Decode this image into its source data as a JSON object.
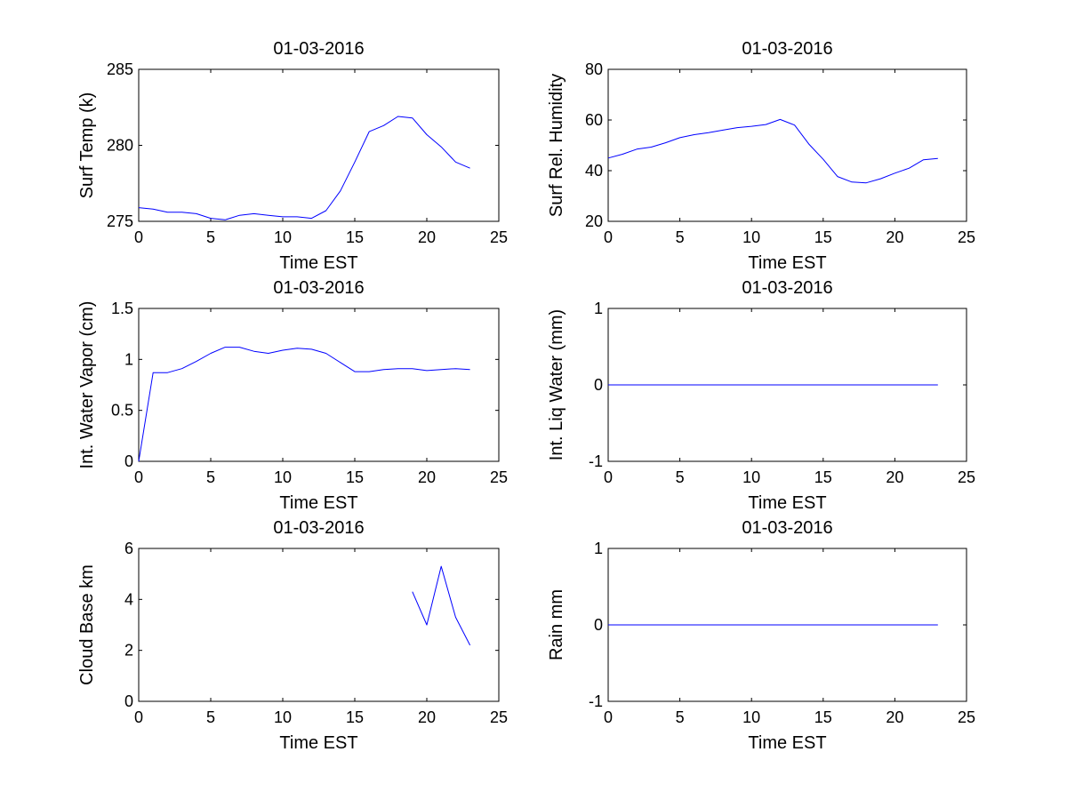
{
  "figure": {
    "background": "#ffffff",
    "axes_color": "#000000",
    "line_color": "#0000ff"
  },
  "chart_data": [
    {
      "type": "line",
      "title": "01-03-2016",
      "xlabel": "Time EST",
      "ylabel": "Surf Temp (k)",
      "xlim": [
        0,
        25
      ],
      "ylim": [
        275,
        285
      ],
      "xticks": [
        0,
        5,
        10,
        15,
        20,
        25
      ],
      "yticks": [
        275,
        280,
        285
      ],
      "grid": false,
      "series": [
        {
          "x": [
            0,
            1,
            2,
            3,
            4,
            5,
            6,
            7,
            8,
            9,
            10,
            11,
            12,
            13,
            14,
            15,
            16,
            17,
            18,
            19,
            20,
            21,
            22,
            23
          ],
          "y": [
            275.9,
            275.8,
            275.6,
            275.6,
            275.5,
            275.2,
            275.1,
            275.4,
            275.5,
            275.4,
            275.3,
            275.3,
            275.2,
            275.7,
            277.0,
            278.9,
            280.9,
            281.3,
            281.9,
            281.8,
            280.7,
            279.9,
            278.9,
            278.5
          ]
        }
      ]
    },
    {
      "type": "line",
      "title": "01-03-2016",
      "xlabel": "Time EST",
      "ylabel": "Surf Rel. Humidity",
      "xlim": [
        0,
        25
      ],
      "ylim": [
        20,
        80
      ],
      "xticks": [
        0,
        5,
        10,
        15,
        20,
        25
      ],
      "yticks": [
        20,
        40,
        60,
        80
      ],
      "grid": false,
      "series": [
        {
          "x": [
            0,
            1,
            2,
            3,
            4,
            5,
            6,
            7,
            8,
            9,
            10,
            11,
            12,
            13,
            14,
            15,
            16,
            17,
            18,
            19,
            20,
            21,
            22,
            23
          ],
          "y": [
            45.0,
            46.5,
            48.5,
            49.3,
            51.0,
            53.0,
            54.2,
            55.0,
            56.0,
            57.0,
            57.5,
            58.2,
            60.2,
            58.0,
            50.5,
            44.5,
            37.7,
            35.5,
            35.2,
            36.8,
            39.0,
            41.0,
            44.3,
            44.8
          ]
        }
      ]
    },
    {
      "type": "line",
      "title": "01-03-2016",
      "xlabel": "Time EST",
      "ylabel": "Int. Water Vapor (cm)",
      "xlim": [
        0,
        25
      ],
      "ylim": [
        0,
        1.5
      ],
      "xticks": [
        0,
        5,
        10,
        15,
        20,
        25
      ],
      "yticks": [
        0,
        0.5,
        1,
        1.5
      ],
      "grid": false,
      "series": [
        {
          "x": [
            0,
            1,
            2,
            3,
            4,
            5,
            6,
            7,
            8,
            9,
            10,
            11,
            12,
            13,
            14,
            15,
            16,
            17,
            18,
            19,
            20,
            21,
            22,
            23
          ],
          "y": [
            0.0,
            0.87,
            0.87,
            0.91,
            0.98,
            1.06,
            1.12,
            1.12,
            1.08,
            1.06,
            1.09,
            1.11,
            1.1,
            1.06,
            0.97,
            0.88,
            0.88,
            0.9,
            0.91,
            0.91,
            0.89,
            0.9,
            0.91,
            0.9
          ]
        }
      ]
    },
    {
      "type": "line",
      "title": "01-03-2016",
      "xlabel": "Time EST",
      "ylabel": "Int. Liq Water (mm)",
      "xlim": [
        0,
        25
      ],
      "ylim": [
        -1,
        1
      ],
      "xticks": [
        0,
        5,
        10,
        15,
        20,
        25
      ],
      "yticks": [
        -1,
        0,
        1
      ],
      "grid": false,
      "series": [
        {
          "x": [
            0,
            1,
            2,
            3,
            4,
            5,
            6,
            7,
            8,
            9,
            10,
            11,
            12,
            13,
            14,
            15,
            16,
            17,
            18,
            19,
            20,
            21,
            22,
            23
          ],
          "y": [
            0,
            0,
            0,
            0,
            0,
            0,
            0,
            0,
            0,
            0,
            0,
            0,
            0,
            0,
            0,
            0,
            0,
            0,
            0,
            0,
            0,
            0,
            0,
            0
          ]
        }
      ]
    },
    {
      "type": "line",
      "title": "01-03-2016",
      "xlabel": "Time EST",
      "ylabel": "Cloud Base km",
      "xlim": [
        0,
        25
      ],
      "ylim": [
        0,
        6
      ],
      "xticks": [
        0,
        5,
        10,
        15,
        20,
        25
      ],
      "yticks": [
        0,
        2,
        4,
        6
      ],
      "grid": false,
      "series": [
        {
          "x": [
            19,
            20,
            21,
            22,
            23
          ],
          "y": [
            4.3,
            3.0,
            5.3,
            3.3,
            2.2
          ]
        }
      ]
    },
    {
      "type": "line",
      "title": "01-03-2016",
      "xlabel": "Time EST",
      "ylabel": "Rain mm",
      "xlim": [
        0,
        25
      ],
      "ylim": [
        -1,
        1
      ],
      "xticks": [
        0,
        5,
        10,
        15,
        20,
        25
      ],
      "yticks": [
        -1,
        0,
        1
      ],
      "grid": false,
      "series": [
        {
          "x": [
            0,
            1,
            2,
            3,
            4,
            5,
            6,
            7,
            8,
            9,
            10,
            11,
            12,
            13,
            14,
            15,
            16,
            17,
            18,
            19,
            20,
            21,
            22,
            23
          ],
          "y": [
            0,
            0,
            0,
            0,
            0,
            0,
            0,
            0,
            0,
            0,
            0,
            0,
            0,
            0,
            0,
            0,
            0,
            0,
            0,
            0,
            0,
            0,
            0,
            0
          ]
        }
      ]
    }
  ]
}
